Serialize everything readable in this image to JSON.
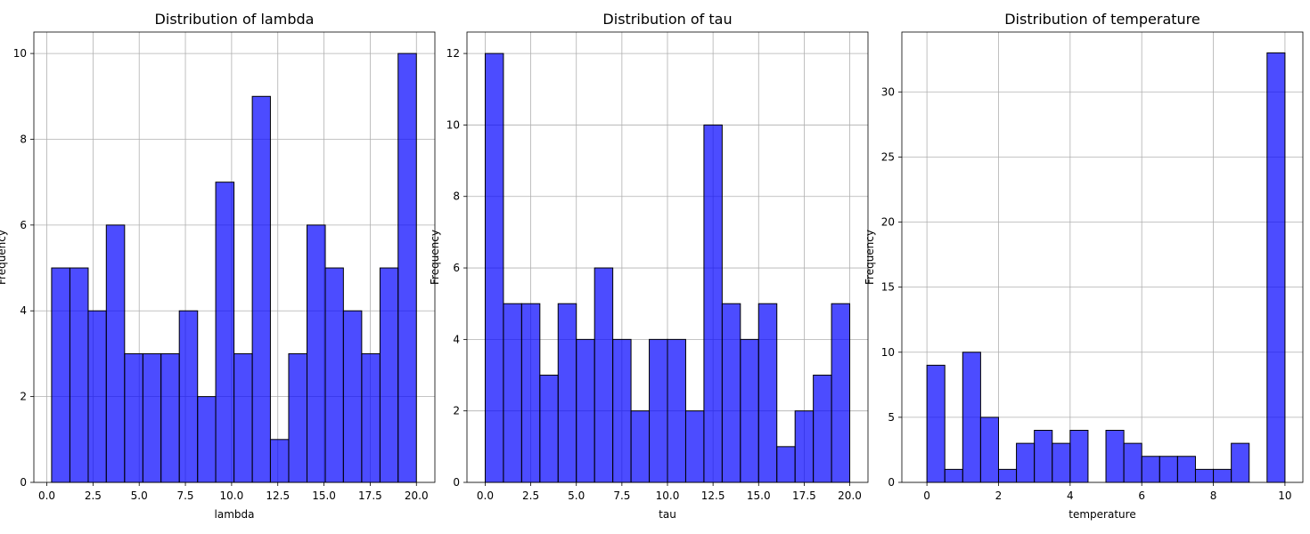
{
  "colors": {
    "bar_fill": "#0000ff",
    "bar_opacity": 0.7,
    "bar_edge": "#000000",
    "grid": "#b0b0b0"
  },
  "chart_data": [
    {
      "type": "bar",
      "title": "Distribution of lambda",
      "xlabel": "lambda",
      "ylabel": "Frequency",
      "xlim": [
        -0.7,
        21.0
      ],
      "ylim": [
        0,
        10.5
      ],
      "xticks": [
        "0.0",
        "2.5",
        "5.0",
        "7.5",
        "10.0",
        "12.5",
        "15.0",
        "17.5",
        "20.0"
      ],
      "yticks": [
        "0",
        "2",
        "4",
        "6",
        "8",
        "10"
      ],
      "grid": true,
      "bin_edges": [
        0.26,
        1.25,
        2.24,
        3.22,
        4.21,
        5.2,
        6.18,
        7.17,
        8.16,
        9.14,
        10.13,
        11.12,
        12.1,
        13.09,
        14.08,
        15.07,
        16.05,
        17.04,
        18.03,
        19.01,
        20.0
      ],
      "counts": [
        5,
        5,
        4,
        6,
        3,
        3,
        3,
        4,
        2,
        7,
        3,
        9,
        1,
        3,
        6,
        5,
        4,
        3,
        5,
        10
      ]
    },
    {
      "type": "bar",
      "title": "Distribution of tau",
      "xlabel": "tau",
      "ylabel": "Frequency",
      "xlim": [
        -1.0,
        21.0
      ],
      "ylim": [
        0,
        12.6
      ],
      "xticks": [
        "0.0",
        "2.5",
        "5.0",
        "7.5",
        "10.0",
        "12.5",
        "15.0",
        "17.5",
        "20.0"
      ],
      "yticks": [
        "0",
        "2",
        "4",
        "6",
        "8",
        "10",
        "12"
      ],
      "grid": true,
      "bin_edges": [
        0.0,
        1.0,
        2.0,
        3.0,
        4.0,
        5.0,
        6.0,
        7.0,
        8.0,
        9.0,
        10.0,
        11.0,
        12.0,
        13.0,
        14.0,
        15.0,
        16.0,
        17.0,
        18.0,
        19.0,
        20.0
      ],
      "counts": [
        12,
        5,
        5,
        3,
        5,
        4,
        6,
        4,
        2,
        4,
        4,
        2,
        10,
        5,
        4,
        5,
        1,
        2,
        3,
        5
      ]
    },
    {
      "type": "bar",
      "title": "Distribution of temperature",
      "xlabel": "temperature",
      "ylabel": "Frequency",
      "xlim": [
        -0.7,
        10.5
      ],
      "ylim": [
        0,
        34.6
      ],
      "xticks": [
        "0",
        "2",
        "4",
        "6",
        "8",
        "10"
      ],
      "yticks": [
        "0",
        "5",
        "10",
        "15",
        "20",
        "25",
        "30"
      ],
      "grid": true,
      "bin_edges": [
        0.0,
        0.5,
        1.0,
        1.5,
        2.0,
        2.5,
        3.0,
        3.5,
        4.0,
        4.5,
        5.0,
        5.5,
        6.0,
        6.5,
        7.0,
        7.5,
        8.0,
        8.5,
        9.0,
        9.5,
        10.0
      ],
      "counts": [
        9,
        1,
        10,
        5,
        1,
        3,
        4,
        3,
        4,
        0,
        4,
        3,
        2,
        2,
        2,
        1,
        1,
        3,
        0,
        33
      ]
    }
  ]
}
